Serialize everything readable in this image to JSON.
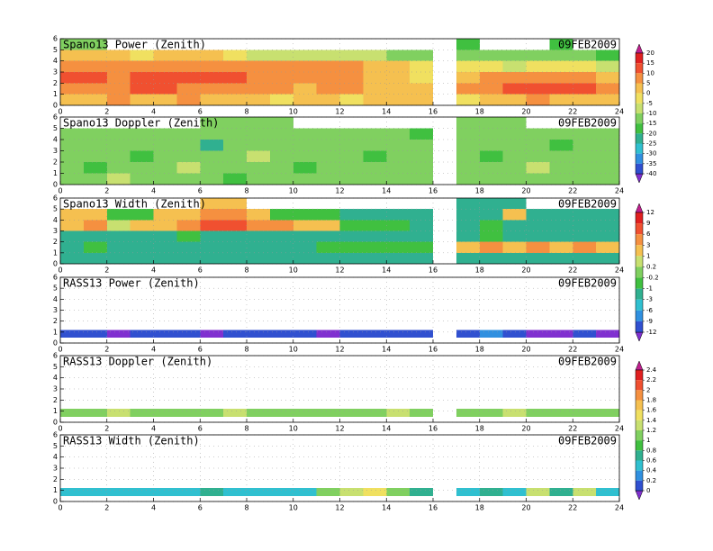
{
  "chart_data": [
    {
      "type": "heatmap",
      "title": "Spano13 Power (Zenith)",
      "date": "09FEB2009",
      "x_bins": [
        0,
        1,
        2,
        3,
        4,
        5,
        6,
        7,
        8,
        9,
        10,
        11,
        12,
        13,
        14,
        15,
        16,
        17,
        18,
        19,
        20,
        21,
        22,
        23,
        24
      ],
      "y_bins": [
        0,
        1,
        2,
        3,
        4,
        5,
        6
      ],
      "values": [
        [
          0,
          0,
          5,
          0,
          0,
          5,
          0,
          0,
          0,
          -5,
          0,
          0,
          -5,
          0,
          0,
          0,
          null,
          -5,
          0,
          0,
          5,
          0,
          0,
          0
        ],
        [
          5,
          5,
          5,
          10,
          10,
          5,
          5,
          5,
          5,
          5,
          0,
          5,
          5,
          0,
          0,
          0,
          null,
          5,
          5,
          10,
          10,
          10,
          10,
          5
        ],
        [
          10,
          10,
          5,
          10,
          10,
          10,
          10,
          10,
          5,
          5,
          5,
          5,
          5,
          0,
          0,
          -5,
          null,
          0,
          5,
          5,
          5,
          5,
          5,
          0
        ],
        [
          5,
          5,
          5,
          5,
          5,
          5,
          5,
          5,
          5,
          5,
          5,
          5,
          5,
          0,
          0,
          -5,
          null,
          -5,
          -5,
          -10,
          -5,
          -5,
          -5,
          -10
        ],
        [
          0,
          0,
          0,
          -5,
          0,
          0,
          0,
          -5,
          -10,
          -10,
          -10,
          -10,
          -10,
          -10,
          -15,
          -15,
          null,
          -15,
          -15,
          -15,
          -15,
          -15,
          -15,
          -20
        ],
        [
          -15,
          -15,
          null,
          null,
          null,
          null,
          null,
          null,
          null,
          null,
          null,
          null,
          null,
          null,
          null,
          null,
          null,
          -20,
          null,
          null,
          null,
          -20,
          null,
          null
        ]
      ],
      "xlim": [
        0,
        24
      ],
      "xticks": [
        0,
        2,
        4,
        6,
        8,
        10,
        12,
        14,
        16,
        18,
        20,
        22,
        24
      ],
      "ylim": [
        0,
        6
      ],
      "yticks": [
        0,
        1,
        2,
        3,
        4,
        5,
        6
      ],
      "grid": true,
      "colorbar": {
        "ticks": [
          20,
          15,
          10,
          5,
          0,
          -5,
          -10,
          -15,
          -20,
          -25,
          -30,
          -35,
          -40
        ],
        "colors": [
          "#c0208f",
          "#e02020",
          "#f05030",
          "#f59040",
          "#f5c050",
          "#f0e060",
          "#c8e070",
          "#80d060",
          "#40c040",
          "#30b090",
          "#30c0d0",
          "#3090e0",
          "#3050d0",
          "#8030d0"
        ]
      }
    },
    {
      "type": "heatmap",
      "title": "Spano13 Doppler (Zenith)",
      "date": "09FEB2009",
      "x_bins": [
        0,
        1,
        2,
        3,
        4,
        5,
        6,
        7,
        8,
        9,
        10,
        11,
        12,
        13,
        14,
        15,
        16,
        17,
        18,
        19,
        20,
        21,
        22,
        23,
        24
      ],
      "y_bins": [
        0,
        1,
        2,
        3,
        4,
        5,
        6
      ],
      "values": [
        [
          -12,
          -12,
          -8,
          -12,
          -12,
          -12,
          -12,
          -17,
          -12,
          -12,
          -12,
          -12,
          -12,
          -12,
          -12,
          -12,
          null,
          -12,
          -12,
          -12,
          -12,
          -12,
          -12,
          -12
        ],
        [
          -12,
          -17,
          -12,
          -12,
          -12,
          -8,
          -12,
          -12,
          -12,
          -12,
          -17,
          -12,
          -12,
          -12,
          -12,
          -12,
          null,
          -12,
          -12,
          -12,
          -8,
          -12,
          -12,
          -12
        ],
        [
          -12,
          -12,
          -12,
          -17,
          -12,
          -12,
          -12,
          -12,
          -8,
          -12,
          -12,
          -12,
          -12,
          -17,
          -12,
          -12,
          null,
          -12,
          -17,
          -12,
          -12,
          -12,
          -12,
          -12
        ],
        [
          -12,
          -12,
          -12,
          -12,
          -12,
          -12,
          -22,
          -12,
          -12,
          -12,
          -12,
          -12,
          -12,
          -12,
          -12,
          -12,
          null,
          -12,
          -12,
          -12,
          -12,
          -17,
          -12,
          -12
        ],
        [
          -12,
          -12,
          -12,
          -12,
          -12,
          -12,
          -12,
          -12,
          -12,
          -12,
          -12,
          -12,
          -12,
          -12,
          -12,
          -17,
          null,
          -12,
          -12,
          -12,
          -12,
          -12,
          -12,
          -12
        ],
        [
          null,
          null,
          null,
          null,
          null,
          null,
          -12,
          -12,
          -12,
          -12,
          null,
          null,
          null,
          null,
          null,
          null,
          null,
          -12,
          -12,
          -12,
          null,
          null,
          null,
          null
        ]
      ],
      "xlim": [
        0,
        24
      ],
      "xticks": [
        0,
        2,
        4,
        6,
        8,
        10,
        12,
        14,
        16,
        18,
        20,
        22,
        24
      ],
      "ylim": [
        0,
        6
      ],
      "yticks": [
        0,
        1,
        2,
        3,
        4,
        5,
        6
      ],
      "grid": true
    },
    {
      "type": "heatmap",
      "title": "Spano13 Width (Zenith)",
      "date": "09FEB2009",
      "x_bins": [
        0,
        1,
        2,
        3,
        4,
        5,
        6,
        7,
        8,
        9,
        10,
        11,
        12,
        13,
        14,
        15,
        16,
        17,
        18,
        19,
        20,
        21,
        22,
        23,
        24
      ],
      "y_bins": [
        0,
        1,
        2,
        3,
        4,
        5,
        6
      ],
      "values": [
        [
          -2,
          -2,
          -2,
          -2,
          -2,
          -2,
          -2,
          -2,
          -2,
          -2,
          -2,
          -2,
          -2,
          -2,
          -2,
          -2,
          null,
          -2,
          -2,
          -2,
          -2,
          -2,
          -2,
          -2
        ],
        [
          -2,
          -0.5,
          -2,
          -2,
          -2,
          -2,
          -2,
          -2,
          -2,
          -2,
          -2,
          -0.5,
          -0.5,
          -0.5,
          -0.5,
          -0.5,
          null,
          2,
          4,
          2,
          4,
          2,
          4,
          2
        ],
        [
          -2,
          -2,
          -2,
          -2,
          -2,
          -0.5,
          -2,
          -2,
          -2,
          -2,
          -2,
          -2,
          -2,
          -2,
          -2,
          -2,
          null,
          -2,
          -0.5,
          -2,
          -2,
          -2,
          -2,
          -2
        ],
        [
          2,
          4,
          0.5,
          2,
          2,
          4,
          8,
          7,
          4,
          4,
          2,
          2,
          -0.5,
          -0.5,
          -0.5,
          -2,
          null,
          -2,
          -0.5,
          -2,
          -2,
          -2,
          -2,
          -2
        ],
        [
          2,
          2,
          -0.5,
          -0.5,
          2,
          2,
          4,
          4,
          2,
          -0.5,
          -0.5,
          -0.5,
          -2,
          -2,
          -2,
          -2,
          null,
          -2,
          -2,
          2,
          -2,
          -2,
          -2,
          -2
        ],
        [
          null,
          null,
          null,
          null,
          null,
          null,
          2,
          2,
          null,
          null,
          null,
          null,
          null,
          null,
          null,
          null,
          null,
          -2,
          -2,
          -2,
          null,
          null,
          null,
          null
        ]
      ],
      "xlim": [
        0,
        24
      ],
      "xticks": [
        0,
        2,
        4,
        6,
        8,
        10,
        12,
        14,
        16,
        18,
        20,
        22,
        24
      ],
      "ylim": [
        0,
        6
      ],
      "yticks": [
        0,
        1,
        2,
        3,
        4,
        5,
        6
      ],
      "grid": true,
      "colorbar": {
        "ticks": [
          12,
          9,
          6,
          3,
          1,
          0.2,
          -0.2,
          -1,
          -3,
          -6,
          -9,
          -12
        ],
        "colors": [
          "#c0208f",
          "#e02020",
          "#f05030",
          "#f59040",
          "#f5c050",
          "#c8e070",
          "#80d060",
          "#40c040",
          "#30b090",
          "#30c0d0",
          "#3090e0",
          "#3050d0",
          "#8030d0"
        ]
      }
    },
    {
      "type": "heatmap",
      "title": "RASS13 Power (Zenith)",
      "date": "09FEB2009",
      "x_bins": [
        0,
        1,
        2,
        3,
        4,
        5,
        6,
        7,
        8,
        9,
        10,
        11,
        12,
        13,
        14,
        15,
        16,
        17,
        18,
        19,
        20,
        21,
        22,
        23,
        24
      ],
      "y_bins": [
        0.5,
        1.2
      ],
      "values": [
        [
          -10,
          -10,
          -13,
          -10,
          -10,
          -10,
          -13,
          -10,
          -10,
          -10,
          -10,
          -13,
          -10,
          -10,
          -10,
          -10,
          null,
          -10,
          -7,
          -10,
          -13,
          -13,
          -10,
          -13
        ]
      ],
      "xlim": [
        0,
        24
      ],
      "xticks": [
        0,
        2,
        4,
        6,
        8,
        10,
        12,
        14,
        16,
        18,
        20,
        22,
        24
      ],
      "ylim": [
        0,
        6
      ],
      "yticks": [
        0,
        1,
        2,
        3,
        4,
        5,
        6
      ],
      "grid": true
    },
    {
      "type": "heatmap",
      "title": "RASS13 Doppler (Zenith)",
      "date": "09FEB2009",
      "x_bins": [
        0,
        1,
        2,
        3,
        4,
        5,
        6,
        7,
        8,
        9,
        10,
        11,
        12,
        13,
        14,
        15,
        16,
        17,
        18,
        19,
        20,
        21,
        22,
        23,
        24
      ],
      "y_bins": [
        0.5,
        1.2
      ],
      "values": [
        [
          1.1,
          1.1,
          1.3,
          1.1,
          1.1,
          1.1,
          1.1,
          1.3,
          1.1,
          1.1,
          1.1,
          1.1,
          1.1,
          1.1,
          1.3,
          1.1,
          null,
          1.1,
          1.1,
          1.3,
          1.1,
          1.1,
          1.1,
          1.1
        ]
      ],
      "xlim": [
        0,
        24
      ],
      "xticks": [
        0,
        2,
        4,
        6,
        8,
        10,
        12,
        14,
        16,
        18,
        20,
        22,
        24
      ],
      "ylim": [
        0,
        6
      ],
      "yticks": [
        0,
        1,
        2,
        3,
        4,
        5,
        6
      ],
      "grid": true,
      "colorbar": {
        "ticks": [
          2.4,
          2.2,
          2,
          1.8,
          1.6,
          1.4,
          1.2,
          1,
          0.8,
          0.6,
          0.4,
          0.2,
          0
        ],
        "colors": [
          "#c0208f",
          "#e02020",
          "#f05030",
          "#f59040",
          "#f5c050",
          "#f0e060",
          "#c8e070",
          "#80d060",
          "#40c040",
          "#30b090",
          "#30c0d0",
          "#3090e0",
          "#3050d0",
          "#8030d0"
        ]
      }
    },
    {
      "type": "heatmap",
      "title": "RASS13 Width (Zenith)",
      "date": "09FEB2009",
      "x_bins": [
        0,
        1,
        2,
        3,
        4,
        5,
        6,
        7,
        8,
        9,
        10,
        11,
        12,
        13,
        14,
        15,
        16,
        17,
        18,
        19,
        20,
        21,
        22,
        23,
        24
      ],
      "y_bins": [
        0.5,
        1.2
      ],
      "values": [
        [
          0.5,
          0.5,
          0.5,
          0.5,
          0.5,
          0.5,
          0.7,
          0.5,
          0.5,
          0.5,
          0.5,
          1.1,
          1.3,
          1.5,
          1.1,
          0.7,
          null,
          0.5,
          0.7,
          0.5,
          1.3,
          0.7,
          1.3,
          0.5
        ]
      ],
      "xlim": [
        0,
        24
      ],
      "xticks": [
        0,
        2,
        4,
        6,
        8,
        10,
        12,
        14,
        16,
        18,
        20,
        22,
        24
      ],
      "ylim": [
        0,
        6
      ],
      "yticks": [
        0,
        1,
        2,
        3,
        4,
        5,
        6
      ],
      "grid": true
    }
  ]
}
